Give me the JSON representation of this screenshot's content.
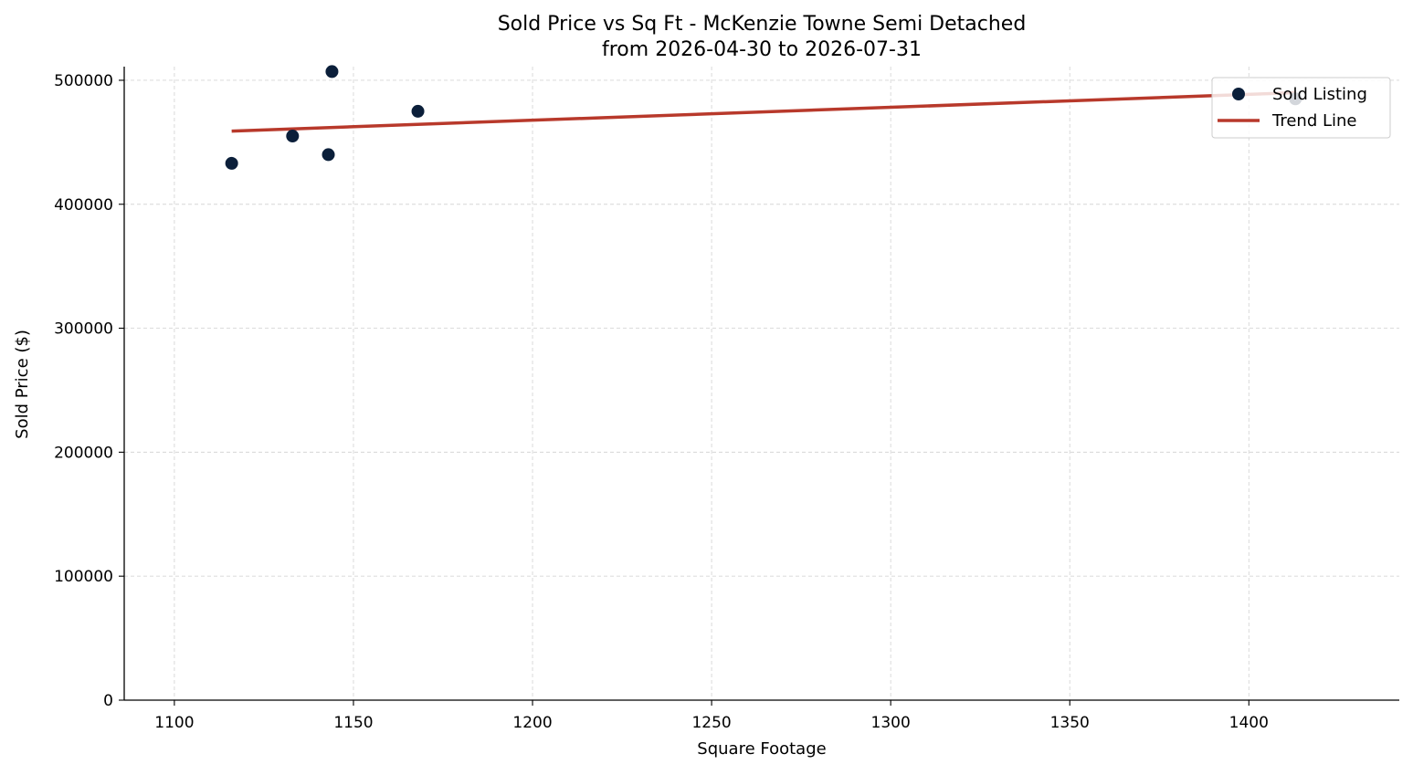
{
  "chart_data": {
    "type": "scatter",
    "title": "Sold Price vs Sq Ft - McKenzie Towne Semi Detached",
    "subtitle": "from 2026-04-30 to 2026-07-31",
    "xlabel": "Square Footage",
    "ylabel": "Sold Price ($)",
    "xlim": [
      1086,
      1442
    ],
    "ylim": [
      0,
      511000
    ],
    "x_ticks": [
      1100,
      1150,
      1200,
      1250,
      1300,
      1350,
      1400
    ],
    "y_ticks": [
      0,
      100000,
      200000,
      300000,
      400000,
      500000
    ],
    "grid": true,
    "legend_position": "top-right",
    "series": [
      {
        "name": "Sold Listing",
        "kind": "scatter",
        "color": "#0b1f3a",
        "points": [
          {
            "x": 1116,
            "y": 433000
          },
          {
            "x": 1133,
            "y": 455000
          },
          {
            "x": 1143,
            "y": 440000
          },
          {
            "x": 1144,
            "y": 507000
          },
          {
            "x": 1168,
            "y": 475000
          },
          {
            "x": 1413,
            "y": 485000
          }
        ]
      },
      {
        "name": "Trend Line",
        "kind": "line",
        "color": "#b8392b",
        "points": [
          {
            "x": 1116,
            "y": 459000
          },
          {
            "x": 1413,
            "y": 490000
          }
        ]
      }
    ]
  }
}
